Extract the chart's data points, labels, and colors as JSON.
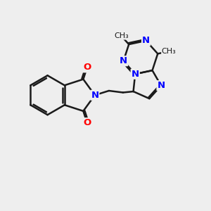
{
  "bg_color": "#eeeeee",
  "bond_color": "#1a1a1a",
  "N_color": "#0000ff",
  "O_color": "#ff0000",
  "bond_width": 1.8,
  "font_size": 9.5,
  "xlim": [
    0,
    10
  ],
  "ylim": [
    0,
    10
  ]
}
